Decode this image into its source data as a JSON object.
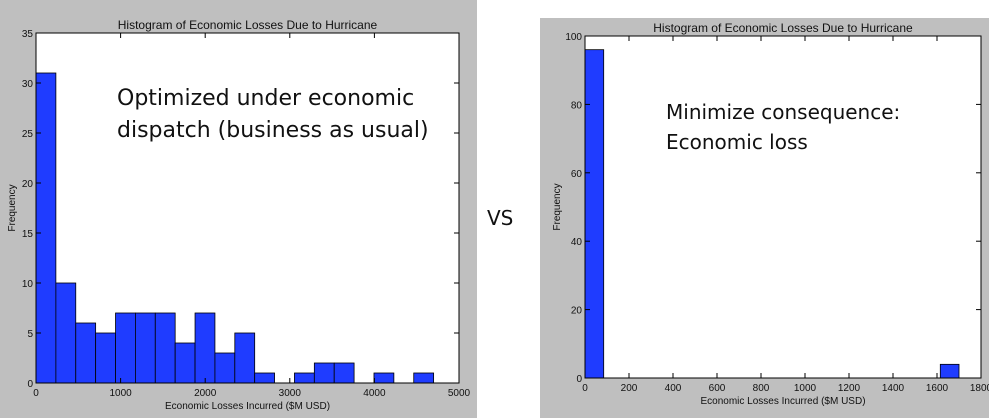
{
  "vs_label": "VS",
  "chart_data": [
    {
      "type": "bar",
      "title": "Histogram of Economic Losses Due to Hurricane",
      "xlabel": "Economic Losses Incurred ($M USD)",
      "ylabel": "Frequency",
      "xlim": [
        0,
        5000
      ],
      "ylim": [
        0,
        35
      ],
      "xticks": [
        0,
        1000,
        2000,
        3000,
        4000,
        5000
      ],
      "yticks": [
        0,
        5,
        10,
        15,
        20,
        25,
        30,
        35
      ],
      "bar_color": "#1f3cff",
      "bin_width": 235,
      "bins_start": [
        0,
        235,
        470,
        705,
        940,
        1175,
        1410,
        1645,
        1880,
        2115,
        2350,
        2585,
        2820,
        3055,
        3290,
        3525,
        3760,
        3995,
        4230,
        4465
      ],
      "values": [
        31,
        10,
        6,
        5,
        7,
        7,
        7,
        4,
        7,
        3,
        5,
        1,
        0,
        1,
        2,
        2,
        0,
        1,
        0,
        1
      ],
      "annotation": [
        "Optimized under economic",
        "dispatch (business as usual)"
      ]
    },
    {
      "type": "bar",
      "title": "Histogram of Economic Losses Due to Hurricane",
      "xlabel": "Economic Losses Incurred ($M USD)",
      "ylabel": "Frequency",
      "xlim": [
        0,
        1800
      ],
      "ylim": [
        0,
        100
      ],
      "xticks": [
        0,
        200,
        400,
        600,
        800,
        1000,
        1200,
        1400,
        1600,
        1800
      ],
      "yticks": [
        0,
        20,
        40,
        60,
        80,
        100
      ],
      "bar_color": "#1f3cff",
      "bin_width": 85,
      "bins_start": [
        0,
        1615
      ],
      "values": [
        96,
        4
      ],
      "annotation": [
        "Minimize consequence:",
        "Economic loss"
      ]
    }
  ]
}
